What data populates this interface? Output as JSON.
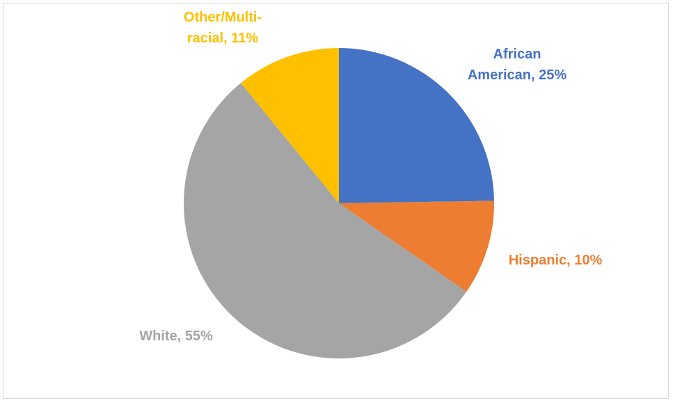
{
  "chart_data": {
    "type": "pie",
    "title": "",
    "legend": "none",
    "slices": [
      {
        "name": "African American",
        "value": 25,
        "color": "#4472c4",
        "label_lines": [
          "African",
          "American, 25%"
        ]
      },
      {
        "name": "Hispanic",
        "value": 10,
        "color": "#ed7d31",
        "label_lines": [
          "Hispanic, 10%"
        ]
      },
      {
        "name": "White",
        "value": 55,
        "color": "#a5a5a5",
        "label_lines": [
          "White, 55%"
        ]
      },
      {
        "name": "Other/Multi-racial",
        "value": 11,
        "color": "#ffc000",
        "label_lines": [
          "Other/Multi-",
          "racial, 11%"
        ]
      }
    ]
  }
}
